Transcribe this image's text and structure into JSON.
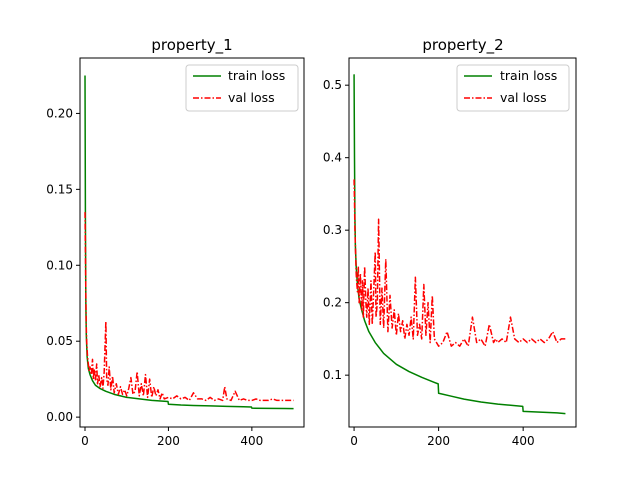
{
  "chart_data": [
    {
      "type": "line",
      "title": "property_1",
      "xlabel": "",
      "ylabel": "",
      "xlim": [
        -12,
        525
      ],
      "ylim": [
        -0.0065,
        0.2365
      ],
      "xticks": [
        0,
        200,
        400
      ],
      "yticks": [
        0.0,
        0.05,
        0.1,
        0.15,
        0.2
      ],
      "ytick_labels": [
        "0.00",
        "0.05",
        "0.10",
        "0.15",
        "0.20"
      ],
      "legend": "top-right",
      "grid": false,
      "series": [
        {
          "name": "train loss",
          "style": "solid",
          "color": "#008000",
          "x": [
            0,
            1,
            2,
            3,
            5,
            8,
            12,
            18,
            25,
            35,
            50,
            70,
            100,
            130,
            160,
            190,
            199,
            200,
            230,
            260,
            300,
            340,
            380,
            399,
            400,
            440,
            480,
            500
          ],
          "y": [
            0.225,
            0.13,
            0.075,
            0.055,
            0.04,
            0.032,
            0.028,
            0.024,
            0.021,
            0.019,
            0.017,
            0.015,
            0.013,
            0.012,
            0.011,
            0.0105,
            0.0103,
            0.0085,
            0.008,
            0.0077,
            0.0074,
            0.0071,
            0.0068,
            0.0067,
            0.0059,
            0.0058,
            0.0057,
            0.0056
          ]
        },
        {
          "name": "val loss",
          "style": "dashdot",
          "color": "#ff0000",
          "x": [
            0,
            1,
            2,
            3,
            4,
            5,
            6,
            8,
            10,
            12,
            15,
            18,
            20,
            22,
            25,
            28,
            30,
            33,
            36,
            40,
            43,
            46,
            50,
            52,
            55,
            58,
            62,
            66,
            70,
            75,
            80,
            85,
            90,
            95,
            100,
            105,
            110,
            115,
            120,
            125,
            130,
            135,
            140,
            145,
            150,
            155,
            160,
            165,
            170,
            175,
            180,
            185,
            190,
            200,
            210,
            220,
            230,
            240,
            250,
            260,
            270,
            280,
            290,
            300,
            310,
            320,
            330,
            335,
            340,
            350,
            360,
            370,
            380,
            390,
            400,
            410,
            420,
            430,
            440,
            450,
            460,
            470,
            480,
            490,
            500
          ],
          "y": [
            0.135,
            0.11,
            0.08,
            0.06,
            0.05,
            0.045,
            0.04,
            0.035,
            0.03,
            0.033,
            0.028,
            0.038,
            0.025,
            0.032,
            0.024,
            0.035,
            0.022,
            0.028,
            0.02,
            0.026,
            0.019,
            0.03,
            0.063,
            0.025,
            0.021,
            0.033,
            0.018,
            0.027,
            0.016,
            0.022,
            0.015,
            0.02,
            0.015,
            0.018,
            0.014,
            0.019,
            0.026,
            0.015,
            0.017,
            0.03,
            0.014,
            0.022,
            0.014,
            0.028,
            0.013,
            0.025,
            0.013,
            0.02,
            0.014,
            0.018,
            0.012,
            0.016,
            0.012,
            0.013,
            0.012,
            0.014,
            0.012,
            0.013,
            0.011,
            0.016,
            0.012,
            0.012,
            0.011,
            0.013,
            0.011,
            0.012,
            0.011,
            0.02,
            0.012,
            0.011,
            0.017,
            0.011,
            0.012,
            0.011,
            0.011,
            0.012,
            0.011,
            0.011,
            0.011,
            0.012,
            0.011,
            0.011,
            0.011,
            0.011,
            0.011
          ]
        }
      ]
    },
    {
      "type": "line",
      "title": "property_2",
      "xlabel": "",
      "ylabel": "",
      "xlim": [
        -12,
        525
      ],
      "ylim": [
        0.0285,
        0.5375
      ],
      "xticks": [
        0,
        200,
        400
      ],
      "yticks": [
        0.1,
        0.2,
        0.3,
        0.4,
        0.5
      ],
      "ytick_labels": [
        "0.1",
        "0.2",
        "0.3",
        "0.4",
        "0.5"
      ],
      "legend": "top-right",
      "grid": false,
      "series": [
        {
          "name": "train loss",
          "style": "solid",
          "color": "#008000",
          "x": [
            0,
            1,
            2,
            3,
            5,
            8,
            12,
            18,
            25,
            35,
            50,
            70,
            100,
            130,
            160,
            190,
            199,
            200,
            230,
            260,
            300,
            340,
            380,
            399,
            400,
            440,
            480,
            500
          ],
          "y": [
            0.515,
            0.4,
            0.32,
            0.28,
            0.25,
            0.225,
            0.205,
            0.19,
            0.175,
            0.16,
            0.145,
            0.13,
            0.115,
            0.105,
            0.097,
            0.09,
            0.088,
            0.075,
            0.071,
            0.067,
            0.063,
            0.06,
            0.058,
            0.057,
            0.05,
            0.049,
            0.048,
            0.047
          ]
        },
        {
          "name": "val loss",
          "style": "dashdot",
          "color": "#ff0000",
          "x": [
            0,
            1,
            2,
            3,
            4,
            5,
            6,
            8,
            10,
            12,
            15,
            18,
            20,
            22,
            25,
            28,
            30,
            33,
            36,
            40,
            43,
            46,
            50,
            52,
            55,
            58,
            62,
            66,
            70,
            75,
            80,
            85,
            90,
            95,
            100,
            105,
            110,
            115,
            120,
            125,
            130,
            135,
            140,
            145,
            150,
            155,
            160,
            165,
            170,
            175,
            180,
            185,
            190,
            200,
            210,
            220,
            230,
            240,
            250,
            260,
            270,
            280,
            290,
            300,
            310,
            320,
            330,
            335,
            340,
            350,
            360,
            370,
            380,
            390,
            400,
            410,
            420,
            430,
            440,
            450,
            460,
            470,
            480,
            490,
            500
          ],
          "y": [
            0.37,
            0.34,
            0.3,
            0.28,
            0.26,
            0.24,
            0.23,
            0.215,
            0.25,
            0.2,
            0.24,
            0.19,
            0.23,
            0.18,
            0.25,
            0.2,
            0.18,
            0.22,
            0.17,
            0.23,
            0.17,
            0.21,
            0.27,
            0.18,
            0.2,
            0.315,
            0.17,
            0.22,
            0.165,
            0.26,
            0.16,
            0.21,
            0.165,
            0.19,
            0.155,
            0.185,
            0.16,
            0.175,
            0.15,
            0.17,
            0.155,
            0.18,
            0.15,
            0.235,
            0.155,
            0.17,
            0.15,
            0.225,
            0.155,
            0.2,
            0.145,
            0.21,
            0.15,
            0.14,
            0.145,
            0.16,
            0.14,
            0.145,
            0.14,
            0.15,
            0.14,
            0.18,
            0.145,
            0.15,
            0.14,
            0.17,
            0.145,
            0.15,
            0.145,
            0.15,
            0.145,
            0.18,
            0.15,
            0.145,
            0.15,
            0.145,
            0.15,
            0.145,
            0.15,
            0.145,
            0.15,
            0.16,
            0.145,
            0.15,
            0.15
          ]
        }
      ]
    }
  ]
}
